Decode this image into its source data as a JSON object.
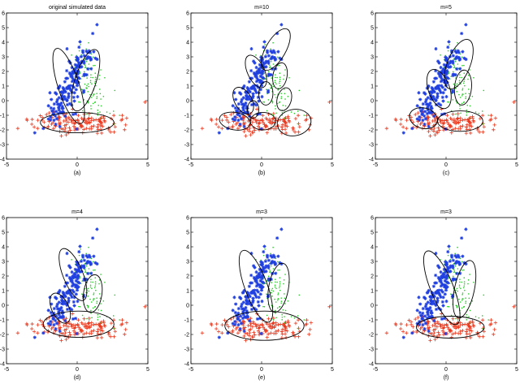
{
  "figure": {
    "colors": {
      "series_blue": "#1f3fe0",
      "series_green": "#22cc22",
      "series_red": "#e8381e",
      "ellipse": "#000000",
      "axes": "#000000"
    },
    "icons": {
      "blue": "asterisk",
      "green": "dot",
      "red": "plus"
    }
  },
  "chart_data": [
    {
      "type": "scatter",
      "title": "original simulated data",
      "caption": "(a)",
      "xlim": [
        -5,
        5
      ],
      "ylim": [
        -4,
        6
      ],
      "xticks": [
        -5,
        0,
        5
      ],
      "yticks": [
        -4,
        -3,
        -2,
        -1,
        0,
        1,
        2,
        3,
        4,
        5,
        6
      ],
      "grid": false,
      "series": [
        {
          "color": "blue",
          "marker": "asterisk",
          "generator": {
            "kind": "band",
            "x0": -1.8,
            "y0": -1.5,
            "x1": 0.6,
            "y1": 3.3,
            "spread": 0.45,
            "n": 170,
            "seed": 11
          },
          "extra": [
            [
              1.4,
              5.2
            ],
            [
              1.1,
              4.6
            ],
            [
              -3.0,
              -2.2
            ],
            [
              -2.4,
              -1.9
            ]
          ]
        },
        {
          "color": "green",
          "marker": "dot",
          "generator": {
            "kind": "band",
            "x0": 1.4,
            "y0": -0.8,
            "x1": 0.3,
            "y1": 3.2,
            "spread": 0.5,
            "n": 110,
            "seed": 23
          },
          "extra": [
            [
              3.0,
              -1.0
            ],
            [
              2.6,
              -1.6
            ]
          ]
        },
        {
          "color": "red",
          "marker": "plus",
          "generator": {
            "kind": "blob",
            "cx": 0.0,
            "cy": -1.5,
            "sx": 1.5,
            "sy": 0.38,
            "n": 140,
            "seed": 37
          },
          "extra": [
            [
              4.8,
              -0.1
            ],
            [
              -4.2,
              -1.9
            ],
            [
              -2.8,
              -1.9
            ],
            [
              3.5,
              -1.2
            ]
          ]
        }
      ],
      "ellipses": [
        {
          "cx": -0.6,
          "cy": 1.0,
          "rx": 0.75,
          "ry": 2.7,
          "angle": -18
        },
        {
          "cx": 0.6,
          "cy": 1.4,
          "rx": 0.75,
          "ry": 2.2,
          "angle": 18
        },
        {
          "cx": 0.0,
          "cy": -1.5,
          "rx": 2.6,
          "ry": 0.7,
          "angle": 0
        }
      ]
    },
    {
      "type": "scatter",
      "title": "m=10",
      "caption": "(b)",
      "xlim": [
        -5,
        5
      ],
      "ylim": [
        -4,
        6
      ],
      "xticks": [
        -5,
        0,
        5
      ],
      "yticks": [
        -4,
        -3,
        -2,
        -1,
        0,
        1,
        2,
        3,
        4,
        5,
        6
      ],
      "grid": false,
      "series": [
        {
          "color": "blue",
          "marker": "asterisk",
          "generator": {
            "kind": "band",
            "x0": -1.8,
            "y0": -1.5,
            "x1": 0.6,
            "y1": 3.3,
            "spread": 0.45,
            "n": 170,
            "seed": 11
          },
          "extra": [
            [
              1.4,
              5.2
            ],
            [
              1.1,
              4.6
            ],
            [
              -3.0,
              -2.2
            ],
            [
              -2.4,
              -1.9
            ]
          ]
        },
        {
          "color": "green",
          "marker": "dot",
          "generator": {
            "kind": "band",
            "x0": 1.4,
            "y0": -0.8,
            "x1": 0.3,
            "y1": 3.2,
            "spread": 0.5,
            "n": 110,
            "seed": 23
          },
          "extra": [
            [
              3.0,
              -1.0
            ],
            [
              2.6,
              -1.6
            ]
          ]
        },
        {
          "color": "red",
          "marker": "plus",
          "generator": {
            "kind": "blob",
            "cx": 0.0,
            "cy": -1.5,
            "sx": 1.5,
            "sy": 0.38,
            "n": 140,
            "seed": 37
          },
          "extra": [
            [
              4.8,
              -0.1
            ],
            [
              -4.2,
              -1.9
            ],
            [
              -2.8,
              -1.9
            ],
            [
              3.5,
              -1.2
            ]
          ]
        }
      ],
      "ellipses": [
        {
          "cx": 1.0,
          "cy": 3.5,
          "rx": 0.7,
          "ry": 1.6,
          "angle": 30
        },
        {
          "cx": -0.4,
          "cy": 2.0,
          "rx": 0.6,
          "ry": 1.2,
          "angle": -25
        },
        {
          "cx": 1.3,
          "cy": 1.7,
          "rx": 0.5,
          "ry": 0.9,
          "angle": 10
        },
        {
          "cx": -1.3,
          "cy": 0.0,
          "rx": 0.6,
          "ry": 1.0,
          "angle": -30
        },
        {
          "cx": 0.3,
          "cy": 0.5,
          "rx": 0.5,
          "ry": 0.8,
          "angle": 0
        },
        {
          "cx": 1.6,
          "cy": 0.1,
          "rx": 0.5,
          "ry": 0.8,
          "angle": 15
        },
        {
          "cx": -1.9,
          "cy": -1.4,
          "rx": 1.1,
          "ry": 0.6,
          "angle": 10
        },
        {
          "cx": 0.1,
          "cy": -1.4,
          "rx": 0.9,
          "ry": 0.6,
          "angle": 0
        },
        {
          "cx": 2.3,
          "cy": -1.5,
          "rx": 1.2,
          "ry": 0.9,
          "angle": -10
        },
        {
          "cx": -0.6,
          "cy": -0.6,
          "rx": 0.4,
          "ry": 0.6,
          "angle": 0
        }
      ]
    },
    {
      "type": "scatter",
      "title": "m=5",
      "caption": "(c)",
      "xlim": [
        -5,
        5
      ],
      "ylim": [
        -4,
        6
      ],
      "xticks": [
        -5,
        0,
        5
      ],
      "yticks": [
        -4,
        -3,
        -2,
        -1,
        0,
        1,
        2,
        3,
        4,
        5,
        6
      ],
      "grid": false,
      "series": [
        {
          "color": "blue",
          "marker": "asterisk",
          "generator": {
            "kind": "band",
            "x0": -1.8,
            "y0": -1.5,
            "x1": 0.6,
            "y1": 3.3,
            "spread": 0.45,
            "n": 170,
            "seed": 11
          },
          "extra": [
            [
              1.4,
              5.2
            ],
            [
              1.1,
              4.6
            ],
            [
              -3.0,
              -2.2
            ],
            [
              -2.4,
              -1.9
            ]
          ]
        },
        {
          "color": "green",
          "marker": "dot",
          "generator": {
            "kind": "band",
            "x0": 1.4,
            "y0": -0.8,
            "x1": 0.3,
            "y1": 3.2,
            "spread": 0.5,
            "n": 110,
            "seed": 23
          },
          "extra": [
            [
              3.0,
              -1.0
            ],
            [
              2.6,
              -1.6
            ]
          ]
        },
        {
          "color": "red",
          "marker": "plus",
          "generator": {
            "kind": "blob",
            "cx": 0.0,
            "cy": -1.5,
            "sx": 1.5,
            "sy": 0.38,
            "n": 140,
            "seed": 37
          },
          "extra": [
            [
              4.8,
              -0.1
            ],
            [
              -4.2,
              -1.9
            ],
            [
              -2.8,
              -1.9
            ],
            [
              3.5,
              -1.2
            ]
          ]
        }
      ],
      "ellipses": [
        {
          "cx": 0.9,
          "cy": 2.5,
          "rx": 0.8,
          "ry": 1.8,
          "angle": 22
        },
        {
          "cx": -0.5,
          "cy": 0.8,
          "rx": 0.75,
          "ry": 1.4,
          "angle": -20
        },
        {
          "cx": 1.2,
          "cy": 0.9,
          "rx": 0.6,
          "ry": 1.2,
          "angle": 5
        },
        {
          "cx": -1.6,
          "cy": -1.2,
          "rx": 1.0,
          "ry": 0.7,
          "angle": 15
        },
        {
          "cx": 1.0,
          "cy": -1.4,
          "rx": 1.6,
          "ry": 0.7,
          "angle": 0
        }
      ]
    },
    {
      "type": "scatter",
      "title": "m=4",
      "caption": "(d)",
      "xlim": [
        -5,
        5
      ],
      "ylim": [
        -4,
        6
      ],
      "xticks": [
        -5,
        0,
        5
      ],
      "yticks": [
        -4,
        -3,
        -2,
        -1,
        0,
        1,
        2,
        3,
        4,
        5,
        6
      ],
      "grid": false,
      "series": [
        {
          "color": "blue",
          "marker": "asterisk",
          "generator": {
            "kind": "band",
            "x0": -1.8,
            "y0": -1.5,
            "x1": 0.6,
            "y1": 3.3,
            "spread": 0.45,
            "n": 170,
            "seed": 11
          },
          "extra": [
            [
              1.4,
              5.2
            ],
            [
              1.1,
              4.6
            ],
            [
              -3.0,
              -2.2
            ],
            [
              -2.4,
              -1.9
            ]
          ]
        },
        {
          "color": "green",
          "marker": "dot",
          "generator": {
            "kind": "band",
            "x0": 1.4,
            "y0": -0.8,
            "x1": 0.3,
            "y1": 3.2,
            "spread": 0.5,
            "n": 110,
            "seed": 23
          },
          "extra": [
            [
              3.0,
              -1.0
            ],
            [
              2.6,
              -1.6
            ]
          ]
        },
        {
          "color": "red",
          "marker": "plus",
          "generator": {
            "kind": "blob",
            "cx": 0.0,
            "cy": -1.5,
            "sx": 1.5,
            "sy": 0.38,
            "n": 140,
            "seed": 37
          },
          "extra": [
            [
              4.8,
              -0.1
            ],
            [
              -4.2,
              -1.9
            ],
            [
              -2.8,
              -1.9
            ],
            [
              3.5,
              -1.2
            ]
          ]
        }
      ],
      "ellipses": [
        {
          "cx": -0.3,
          "cy": 2.1,
          "rx": 0.7,
          "ry": 1.9,
          "angle": -22
        },
        {
          "cx": -1.2,
          "cy": -0.2,
          "rx": 0.6,
          "ry": 1.1,
          "angle": -25
        },
        {
          "cx": 1.1,
          "cy": 0.8,
          "rx": 0.65,
          "ry": 1.3,
          "angle": 8
        },
        {
          "cx": 0.1,
          "cy": -1.3,
          "rx": 2.5,
          "ry": 0.9,
          "angle": 0
        }
      ]
    },
    {
      "type": "scatter",
      "title": "m=3",
      "caption": "(e)",
      "xlim": [
        -5,
        5
      ],
      "ylim": [
        -4,
        6
      ],
      "xticks": [
        -5,
        0,
        5
      ],
      "yticks": [
        -4,
        -3,
        -2,
        -1,
        0,
        1,
        2,
        3,
        4,
        5,
        6
      ],
      "grid": false,
      "series": [
        {
          "color": "blue",
          "marker": "asterisk",
          "generator": {
            "kind": "band",
            "x0": -1.8,
            "y0": -1.5,
            "x1": 0.6,
            "y1": 3.3,
            "spread": 0.45,
            "n": 170,
            "seed": 11
          },
          "extra": [
            [
              1.4,
              5.2
            ],
            [
              1.1,
              4.6
            ],
            [
              -3.0,
              -2.2
            ],
            [
              -2.4,
              -1.9
            ]
          ]
        },
        {
          "color": "green",
          "marker": "dot",
          "generator": {
            "kind": "band",
            "x0": 1.4,
            "y0": -0.8,
            "x1": 0.3,
            "y1": 3.2,
            "spread": 0.5,
            "n": 110,
            "seed": 23
          },
          "extra": [
            [
              3.0,
              -1.0
            ],
            [
              2.6,
              -1.6
            ]
          ]
        },
        {
          "color": "red",
          "marker": "plus",
          "generator": {
            "kind": "blob",
            "cx": 0.0,
            "cy": -1.5,
            "sx": 1.5,
            "sy": 0.38,
            "n": 140,
            "seed": 37
          },
          "extra": [
            [
              4.8,
              -0.1
            ],
            [
              -4.2,
              -1.9
            ],
            [
              -2.8,
              -1.9
            ],
            [
              3.5,
              -1.2
            ]
          ]
        }
      ],
      "ellipses": [
        {
          "cx": -0.4,
          "cy": 1.3,
          "rx": 0.8,
          "ry": 2.6,
          "angle": -20
        },
        {
          "cx": 1.2,
          "cy": 1.2,
          "rx": 0.7,
          "ry": 1.7,
          "angle": 10
        },
        {
          "cx": 0.2,
          "cy": -1.4,
          "rx": 2.8,
          "ry": 1.0,
          "angle": 0
        }
      ]
    },
    {
      "type": "scatter",
      "title": "m=3",
      "caption": "(f)",
      "xlim": [
        -5,
        5
      ],
      "ylim": [
        -4,
        6
      ],
      "xticks": [
        -5,
        0,
        5
      ],
      "yticks": [
        -4,
        -3,
        -2,
        -1,
        0,
        1,
        2,
        3,
        4,
        5,
        6
      ],
      "grid": false,
      "series": [
        {
          "color": "blue",
          "marker": "asterisk",
          "generator": {
            "kind": "band",
            "x0": -1.8,
            "y0": -1.5,
            "x1": 0.6,
            "y1": 3.3,
            "spread": 0.45,
            "n": 170,
            "seed": 11
          },
          "extra": [
            [
              1.4,
              5.2
            ],
            [
              1.1,
              4.6
            ],
            [
              -3.0,
              -2.2
            ],
            [
              -2.4,
              -1.9
            ]
          ]
        },
        {
          "color": "green",
          "marker": "dot",
          "generator": {
            "kind": "band",
            "x0": 1.4,
            "y0": -0.8,
            "x1": 0.3,
            "y1": 3.2,
            "spread": 0.5,
            "n": 110,
            "seed": 23
          },
          "extra": [
            [
              3.0,
              -1.0
            ],
            [
              2.6,
              -1.6
            ]
          ]
        },
        {
          "color": "red",
          "marker": "plus",
          "generator": {
            "kind": "blob",
            "cx": 0.0,
            "cy": -1.5,
            "sx": 1.5,
            "sy": 0.38,
            "n": 140,
            "seed": 37
          },
          "extra": [
            [
              4.8,
              -0.1
            ],
            [
              -4.2,
              -1.9
            ],
            [
              -2.8,
              -1.9
            ],
            [
              3.5,
              -1.2
            ]
          ]
        }
      ],
      "ellipses": [
        {
          "cx": -0.3,
          "cy": 1.2,
          "rx": 0.8,
          "ry": 2.7,
          "angle": -22
        },
        {
          "cx": 1.3,
          "cy": 1.1,
          "rx": 0.7,
          "ry": 2.0,
          "angle": 12
        },
        {
          "cx": 0.3,
          "cy": -1.5,
          "rx": 2.4,
          "ry": 0.75,
          "angle": 0
        }
      ]
    }
  ]
}
